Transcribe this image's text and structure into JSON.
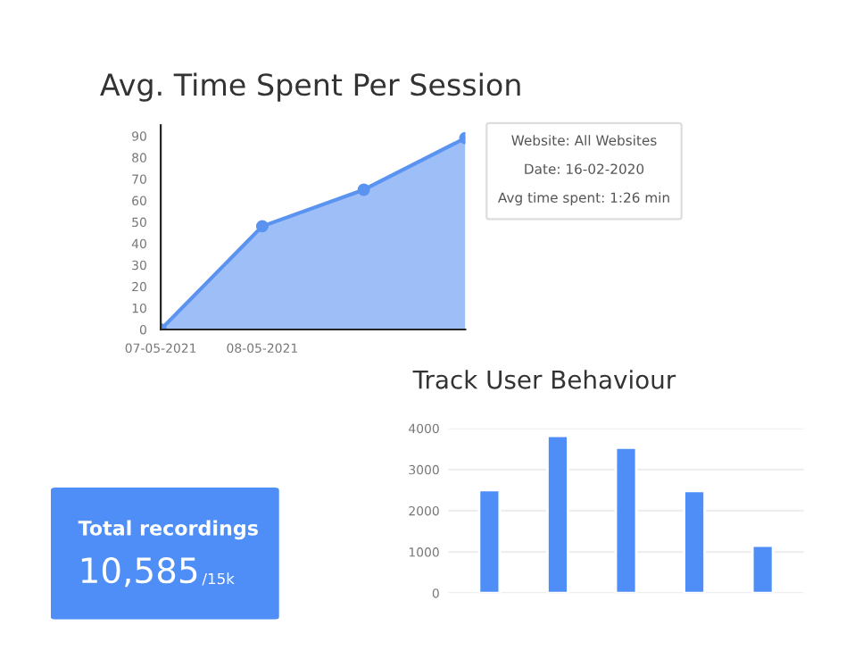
{
  "chart_data": [
    {
      "type": "area",
      "title": "Avg. Time Spent Per Session",
      "categories": [
        "07-05-2021",
        "08-05-2021",
        null,
        null
      ],
      "values": [
        0,
        48,
        65,
        89
      ],
      "color": "#5b93f0",
      "ylim": [
        0,
        95
      ],
      "yticks": [
        0,
        10,
        20,
        30,
        40,
        50,
        60,
        70,
        80,
        90
      ],
      "marker": "circle",
      "grid": false,
      "annotations": [
        "Website: All Websites",
        "Date: 16-02-2020",
        "Avg time spent: 1:26 min"
      ]
    },
    {
      "type": "bar",
      "title": "Track User Behaviour",
      "categories": [
        null,
        null,
        null,
        null,
        null
      ],
      "values": [
        2500,
        3820,
        3530,
        2480,
        1150
      ],
      "color": "#4f8ef7",
      "ylim": [
        0,
        4000
      ],
      "yticks": [
        0,
        1000,
        2000,
        3000,
        4000
      ],
      "grid": "y"
    },
    {
      "type": "other",
      "title": "Total recordings",
      "annotations": [
        "10,585",
        "/15k"
      ]
    }
  ]
}
